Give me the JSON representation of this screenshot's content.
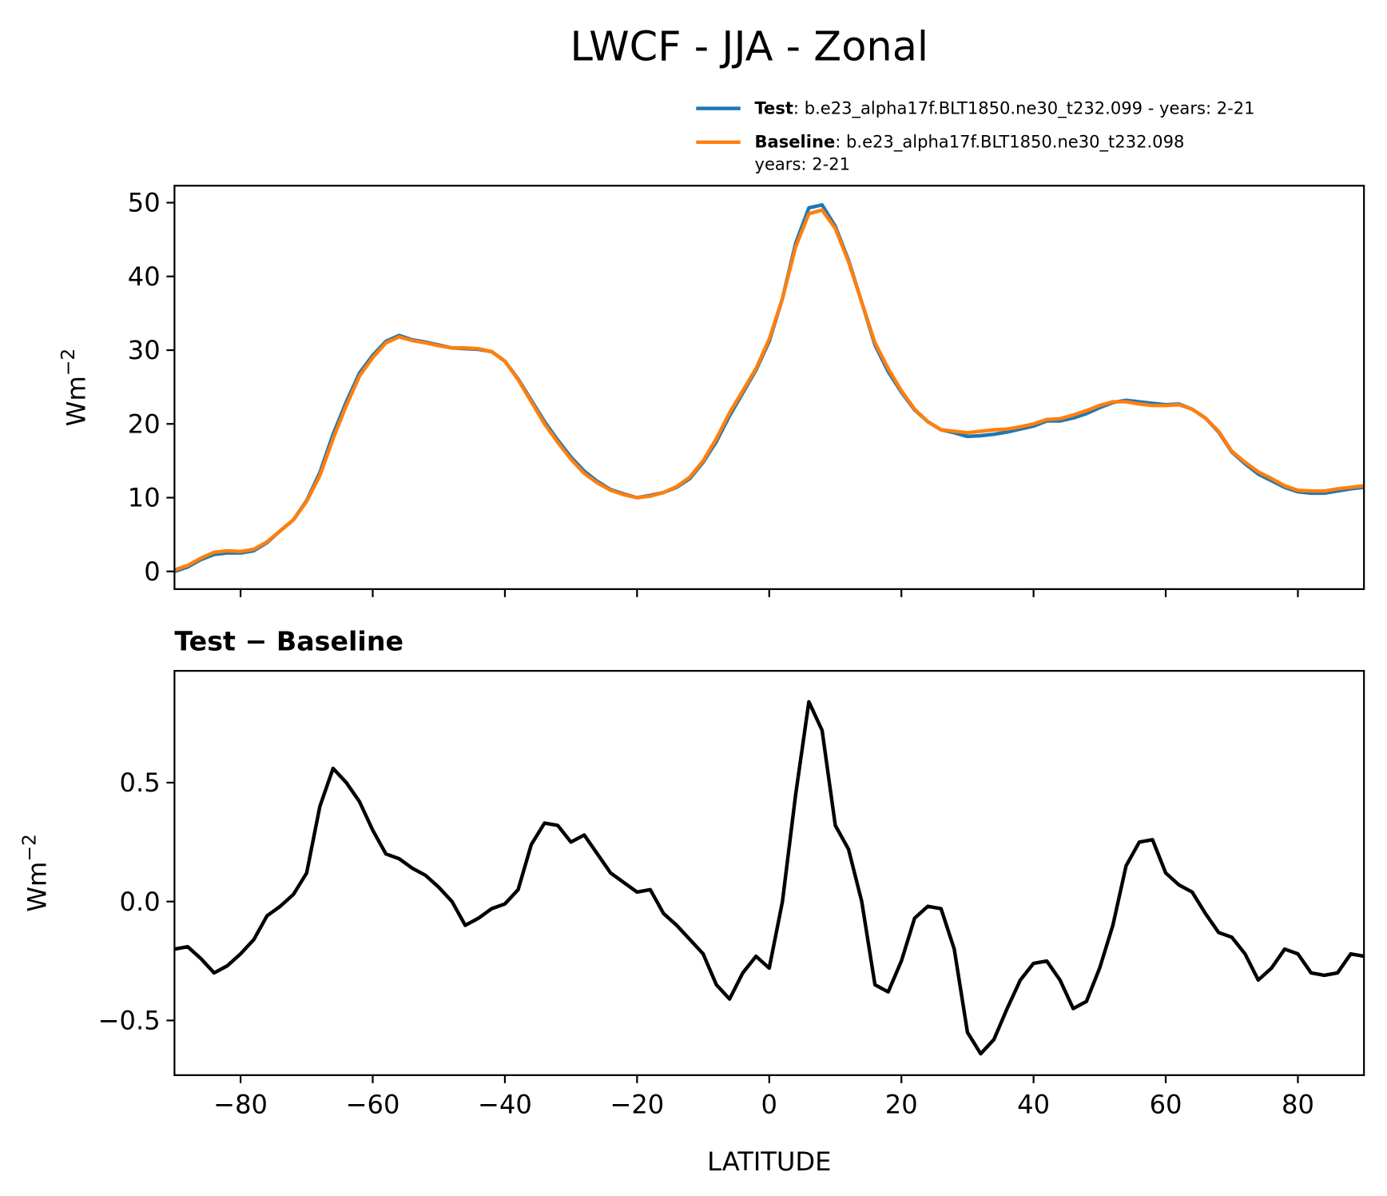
{
  "chart_data": [
    {
      "type": "line",
      "title": "LWCF - JJA - Zonal",
      "ylabel": {
        "base": "Wm",
        "sup": "−2"
      },
      "x": [
        -90,
        -88,
        -86,
        -84,
        -82,
        -80,
        -78,
        -76,
        -74,
        -72,
        -70,
        -68,
        -66,
        -64,
        -62,
        -60,
        -58,
        -56,
        -54,
        -52,
        -50,
        -48,
        -46,
        -44,
        -42,
        -40,
        -38,
        -36,
        -34,
        -32,
        -30,
        -28,
        -26,
        -24,
        -22,
        -20,
        -18,
        -16,
        -14,
        -12,
        -10,
        -8,
        -6,
        -4,
        -2,
        0,
        2,
        4,
        6,
        8,
        10,
        12,
        14,
        16,
        18,
        20,
        22,
        24,
        26,
        28,
        30,
        32,
        34,
        36,
        38,
        40,
        42,
        44,
        46,
        48,
        50,
        52,
        54,
        56,
        58,
        60,
        62,
        64,
        66,
        68,
        70,
        72,
        74,
        76,
        78,
        80,
        82,
        84,
        86,
        88,
        90
      ],
      "series": [
        {
          "name": "Test",
          "description": [
            ": b.e23_alpha17f.BLT1850.ne30_t232.099 - years: 2-21"
          ],
          "color": "#1f77b4",
          "values": [
            0.0,
            0.6,
            1.6,
            2.3,
            2.5,
            2.5,
            2.8,
            3.9,
            5.5,
            7.0,
            9.6,
            13.4,
            18.6,
            23.0,
            26.9,
            29.3,
            31.2,
            32.0,
            31.4,
            31.1,
            30.7,
            30.3,
            30.2,
            30.1,
            29.8,
            28.5,
            26.1,
            23.2,
            20.3,
            17.8,
            15.5,
            13.6,
            12.2,
            11.1,
            10.5,
            10.0,
            10.3,
            10.7,
            11.4,
            12.6,
            14.8,
            17.6,
            21.1,
            24.2,
            27.3,
            31.2,
            37.0,
            44.5,
            49.3,
            49.7,
            46.8,
            42.2,
            36.5,
            30.7,
            27.1,
            24.3,
            21.9,
            20.3,
            19.2,
            18.8,
            18.3,
            18.4,
            18.6,
            18.9,
            19.3,
            19.7,
            20.4,
            20.4,
            20.8,
            21.4,
            22.2,
            22.9,
            23.2,
            23.0,
            22.8,
            22.6,
            22.7,
            22.0,
            20.8,
            18.9,
            16.2,
            14.6,
            13.2,
            12.3,
            11.4,
            10.8,
            10.6,
            10.6,
            10.9,
            11.2,
            11.4
          ]
        },
        {
          "name": "Baseline",
          "description": [
            ": b.e23_alpha17f.BLT1850.ne30_t232.098",
            "years: 2-21"
          ],
          "color": "#ff7f0e",
          "values": [
            0.2,
            0.8,
            1.8,
            2.6,
            2.8,
            2.7,
            3.0,
            4.0,
            5.5,
            7.0,
            9.5,
            13.0,
            18.0,
            22.5,
            26.5,
            29.0,
            31.0,
            31.8,
            31.3,
            31.0,
            30.6,
            30.3,
            30.3,
            30.2,
            29.8,
            28.5,
            26.0,
            23.0,
            20.0,
            17.5,
            15.2,
            13.3,
            12.0,
            11.0,
            10.4,
            10.0,
            10.2,
            10.7,
            11.5,
            12.8,
            15.0,
            18.0,
            21.5,
            24.5,
            27.5,
            31.5,
            37.0,
            44.0,
            48.5,
            49.0,
            46.5,
            42.0,
            36.5,
            31.0,
            27.5,
            24.5,
            22.0,
            20.3,
            19.2,
            19.0,
            18.8,
            19.0,
            19.2,
            19.3,
            19.6,
            20.0,
            20.6,
            20.7,
            21.2,
            21.8,
            22.5,
            23.0,
            23.0,
            22.7,
            22.5,
            22.5,
            22.6,
            22.0,
            20.8,
            19.0,
            16.3,
            14.8,
            13.5,
            12.6,
            11.6,
            11.0,
            10.9,
            10.9,
            11.2,
            11.4,
            11.6
          ]
        }
      ],
      "xlim": [
        -90,
        90
      ],
      "xticks": [
        -80,
        -60,
        -40,
        -20,
        0,
        20,
        40,
        60,
        80
      ],
      "ylim": [
        -2.4,
        52.3
      ],
      "yticks": [
        0,
        10,
        20,
        30,
        40,
        50
      ],
      "legend": "upper right"
    },
    {
      "type": "line",
      "title": "Test − Baseline",
      "ylabel": {
        "base": "Wm",
        "sup": "−2"
      },
      "xlabel": "LATITUDE",
      "x": [
        -90,
        -88,
        -86,
        -84,
        -82,
        -80,
        -78,
        -76,
        -74,
        -72,
        -70,
        -68,
        -66,
        -64,
        -62,
        -60,
        -58,
        -56,
        -54,
        -52,
        -50,
        -48,
        -46,
        -44,
        -42,
        -40,
        -38,
        -36,
        -34,
        -32,
        -30,
        -28,
        -26,
        -24,
        -22,
        -20,
        -18,
        -16,
        -14,
        -12,
        -10,
        -8,
        -6,
        -4,
        -2,
        0,
        2,
        4,
        6,
        8,
        10,
        12,
        14,
        16,
        18,
        20,
        22,
        24,
        26,
        28,
        30,
        32,
        34,
        36,
        38,
        40,
        42,
        44,
        46,
        48,
        50,
        52,
        54,
        56,
        58,
        60,
        62,
        64,
        66,
        68,
        70,
        72,
        74,
        76,
        78,
        80,
        82,
        84,
        86,
        88,
        90
      ],
      "color": "#000000",
      "values": [
        -0.2,
        -0.19,
        -0.24,
        -0.3,
        -0.27,
        -0.22,
        -0.16,
        -0.06,
        -0.02,
        0.03,
        0.12,
        0.4,
        0.56,
        0.5,
        0.42,
        0.3,
        0.2,
        0.18,
        0.14,
        0.11,
        0.06,
        0.0,
        -0.1,
        -0.07,
        -0.03,
        -0.01,
        0.05,
        0.24,
        0.33,
        0.32,
        0.25,
        0.28,
        0.2,
        0.12,
        0.08,
        0.04,
        0.05,
        -0.05,
        -0.1,
        -0.16,
        -0.22,
        -0.35,
        -0.41,
        -0.3,
        -0.23,
        -0.28,
        0.0,
        0.45,
        0.84,
        0.72,
        0.32,
        0.22,
        0.0,
        -0.35,
        -0.38,
        -0.25,
        -0.07,
        -0.02,
        -0.03,
        -0.2,
        -0.55,
        -0.64,
        -0.58,
        -0.45,
        -0.33,
        -0.26,
        -0.25,
        -0.33,
        -0.45,
        -0.42,
        -0.28,
        -0.1,
        0.15,
        0.25,
        0.26,
        0.12,
        0.07,
        0.04,
        -0.05,
        -0.13,
        -0.15,
        -0.22,
        -0.33,
        -0.28,
        -0.2,
        -0.22,
        -0.3,
        -0.31,
        -0.3,
        -0.22,
        -0.23
      ],
      "xlim": [
        -90,
        90
      ],
      "xticks": [
        {
          "value": -80,
          "label": "−80"
        },
        {
          "value": -60,
          "label": "−60"
        },
        {
          "value": -40,
          "label": "−40"
        },
        {
          "value": -20,
          "label": "−20"
        },
        0,
        20,
        40,
        60,
        80
      ],
      "ylim": [
        -0.73,
        0.97
      ],
      "yticks": [
        {
          "value": -0.5,
          "label": "−0.5"
        },
        {
          "value": 0,
          "label": "0.0"
        },
        0.5
      ]
    }
  ]
}
